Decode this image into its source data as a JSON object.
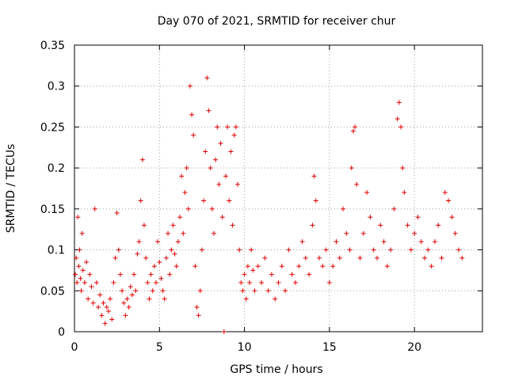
{
  "chart_data": {
    "type": "scatter",
    "title": "Day 070 of 2021, SRMTID for receiver chur",
    "xlabel": "GPS time / hours",
    "ylabel": "SRMTID / TECUs",
    "xlim": [
      0,
      24
    ],
    "ylim": [
      0,
      0.35
    ],
    "xticks": [
      0,
      5,
      10,
      15,
      20
    ],
    "xtick_labels": [
      "0",
      "5",
      "10",
      "15",
      "20"
    ],
    "yticks": [
      0,
      0.05,
      0.1,
      0.15,
      0.2,
      0.25,
      0.3,
      0.35
    ],
    "ytick_labels": [
      "0",
      "0.05",
      "0.1",
      "0.15",
      "0.2",
      "0.25",
      "0.3",
      "0.35"
    ],
    "grid": true,
    "marker": "+",
    "color": "#e00000",
    "series": [
      {
        "name": "SRMTID",
        "points": [
          [
            0.05,
            0.07
          ],
          [
            0.1,
            0.09
          ],
          [
            0.15,
            0.06
          ],
          [
            0.2,
            0.14
          ],
          [
            0.25,
            0.08
          ],
          [
            0.3,
            0.1
          ],
          [
            0.35,
            0.065
          ],
          [
            0.4,
            0.05
          ],
          [
            0.45,
            0.12
          ],
          [
            0.5,
            0.075
          ],
          [
            0.6,
            0.06
          ],
          [
            0.7,
            0.085
          ],
          [
            0.8,
            0.04
          ],
          [
            0.9,
            0.07
          ],
          [
            1.0,
            0.055
          ],
          [
            1.1,
            0.035
          ],
          [
            1.2,
            0.15
          ],
          [
            1.3,
            0.06
          ],
          [
            1.4,
            0.03
          ],
          [
            1.5,
            0.045
          ],
          [
            1.6,
            0.02
          ],
          [
            1.7,
            0.035
          ],
          [
            1.8,
            0.01
          ],
          [
            1.9,
            0.03
          ],
          [
            2.0,
            0.025
          ],
          [
            2.1,
            0.04
          ],
          [
            2.2,
            0.015
          ],
          [
            2.3,
            0.06
          ],
          [
            2.4,
            0.09
          ],
          [
            2.5,
            0.145
          ],
          [
            2.6,
            0.1
          ],
          [
            2.7,
            0.07
          ],
          [
            2.8,
            0.05
          ],
          [
            2.9,
            0.035
          ],
          [
            3.0,
            0.02
          ],
          [
            3.1,
            0.04
          ],
          [
            3.2,
            0.03
          ],
          [
            3.3,
            0.055
          ],
          [
            3.4,
            0.045
          ],
          [
            3.5,
            0.07
          ],
          [
            3.6,
            0.05
          ],
          [
            3.7,
            0.095
          ],
          [
            3.8,
            0.11
          ],
          [
            3.9,
            0.16
          ],
          [
            4.0,
            0.21
          ],
          [
            4.1,
            0.13
          ],
          [
            4.2,
            0.09
          ],
          [
            4.3,
            0.06
          ],
          [
            4.4,
            0.04
          ],
          [
            4.5,
            0.07
          ],
          [
            4.6,
            0.05
          ],
          [
            4.7,
            0.08
          ],
          [
            4.8,
            0.06
          ],
          [
            4.9,
            0.11
          ],
          [
            5.0,
            0.085
          ],
          [
            5.1,
            0.065
          ],
          [
            5.2,
            0.05
          ],
          [
            5.3,
            0.04
          ],
          [
            5.4,
            0.09
          ],
          [
            5.5,
            0.12
          ],
          [
            5.6,
            0.07
          ],
          [
            5.7,
            0.1
          ],
          [
            5.8,
            0.13
          ],
          [
            5.9,
            0.095
          ],
          [
            6.0,
            0.08
          ],
          [
            6.1,
            0.11
          ],
          [
            6.2,
            0.14
          ],
          [
            6.3,
            0.19
          ],
          [
            6.4,
            0.12
          ],
          [
            6.5,
            0.17
          ],
          [
            6.6,
            0.2
          ],
          [
            6.7,
            0.15
          ],
          [
            6.8,
            0.3
          ],
          [
            6.9,
            0.265
          ],
          [
            7.0,
            0.24
          ],
          [
            7.1,
            0.08
          ],
          [
            7.2,
            0.03
          ],
          [
            7.3,
            0.02
          ],
          [
            7.4,
            0.05
          ],
          [
            7.5,
            0.1
          ],
          [
            7.6,
            0.16
          ],
          [
            7.7,
            0.22
          ],
          [
            7.8,
            0.31
          ],
          [
            7.9,
            0.27
          ],
          [
            8.0,
            0.2
          ],
          [
            8.1,
            0.15
          ],
          [
            8.2,
            0.12
          ],
          [
            8.3,
            0.21
          ],
          [
            8.4,
            0.25
          ],
          [
            8.5,
            0.18
          ],
          [
            8.6,
            0.23
          ],
          [
            8.7,
            0.14
          ],
          [
            8.8,
            0.0
          ],
          [
            8.9,
            0.19
          ],
          [
            9.0,
            0.25
          ],
          [
            9.1,
            0.16
          ],
          [
            9.2,
            0.22
          ],
          [
            9.3,
            0.13
          ],
          [
            9.4,
            0.24
          ],
          [
            9.5,
            0.25
          ],
          [
            9.6,
            0.18
          ],
          [
            9.7,
            0.1
          ],
          [
            9.8,
            0.06
          ],
          [
            9.9,
            0.05
          ],
          [
            10.0,
            0.07
          ],
          [
            10.1,
            0.04
          ],
          [
            10.2,
            0.08
          ],
          [
            10.3,
            0.06
          ],
          [
            10.4,
            0.1
          ],
          [
            10.5,
            0.075
          ],
          [
            10.6,
            0.05
          ],
          [
            10.8,
            0.08
          ],
          [
            11.0,
            0.06
          ],
          [
            11.2,
            0.09
          ],
          [
            11.4,
            0.05
          ],
          [
            11.6,
            0.07
          ],
          [
            11.8,
            0.04
          ],
          [
            12.0,
            0.06
          ],
          [
            12.2,
            0.08
          ],
          [
            12.4,
            0.05
          ],
          [
            12.6,
            0.1
          ],
          [
            12.8,
            0.07
          ],
          [
            13.0,
            0.06
          ],
          [
            13.2,
            0.08
          ],
          [
            13.4,
            0.11
          ],
          [
            13.6,
            0.09
          ],
          [
            13.8,
            0.07
          ],
          [
            14.0,
            0.13
          ],
          [
            14.1,
            0.19
          ],
          [
            14.2,
            0.16
          ],
          [
            14.4,
            0.09
          ],
          [
            14.6,
            0.08
          ],
          [
            14.8,
            0.1
          ],
          [
            15.0,
            0.06
          ],
          [
            15.2,
            0.08
          ],
          [
            15.4,
            0.11
          ],
          [
            15.6,
            0.09
          ],
          [
            15.8,
            0.15
          ],
          [
            16.0,
            0.12
          ],
          [
            16.2,
            0.1
          ],
          [
            16.3,
            0.2
          ],
          [
            16.4,
            0.245
          ],
          [
            16.5,
            0.25
          ],
          [
            16.6,
            0.18
          ],
          [
            16.8,
            0.09
          ],
          [
            17.0,
            0.12
          ],
          [
            17.2,
            0.17
          ],
          [
            17.4,
            0.14
          ],
          [
            17.6,
            0.1
          ],
          [
            17.8,
            0.09
          ],
          [
            18.0,
            0.13
          ],
          [
            18.2,
            0.11
          ],
          [
            18.4,
            0.08
          ],
          [
            18.6,
            0.1
          ],
          [
            18.8,
            0.15
          ],
          [
            19.0,
            0.26
          ],
          [
            19.1,
            0.28
          ],
          [
            19.2,
            0.25
          ],
          [
            19.3,
            0.2
          ],
          [
            19.4,
            0.17
          ],
          [
            19.6,
            0.13
          ],
          [
            19.8,
            0.1
          ],
          [
            20.0,
            0.12
          ],
          [
            20.2,
            0.14
          ],
          [
            20.4,
            0.11
          ],
          [
            20.6,
            0.09
          ],
          [
            20.8,
            0.1
          ],
          [
            21.0,
            0.08
          ],
          [
            21.2,
            0.11
          ],
          [
            21.4,
            0.13
          ],
          [
            21.6,
            0.09
          ],
          [
            21.8,
            0.17
          ],
          [
            22.0,
            0.16
          ],
          [
            22.2,
            0.14
          ],
          [
            22.4,
            0.12
          ],
          [
            22.6,
            0.1
          ],
          [
            22.8,
            0.09
          ]
        ]
      }
    ]
  }
}
